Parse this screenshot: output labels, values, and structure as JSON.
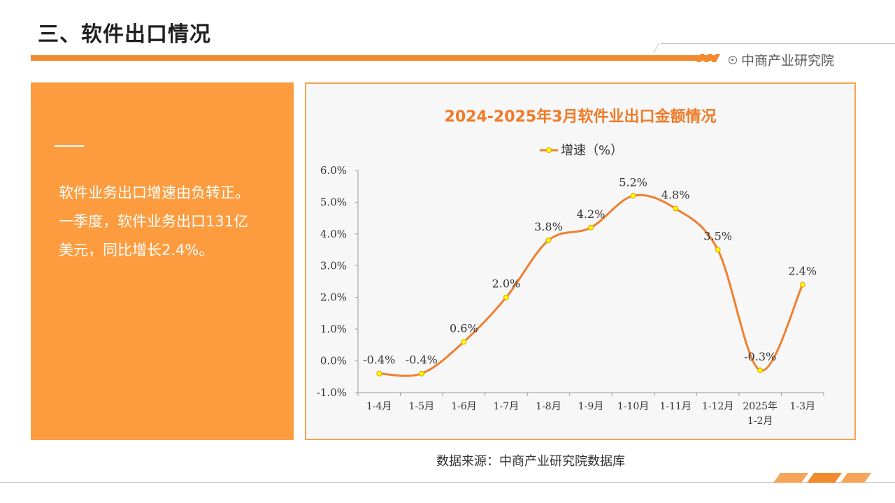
{
  "page": {
    "title": "三、软件出口情况",
    "brand": "中商产业研究院",
    "source": "数据来源：中商产业研究院数据库"
  },
  "summary": {
    "lines": [
      "软件业务出口增速由负转正。",
      "一季度，软件业务出口131亿",
      "美元，同比增长2.4%。"
    ]
  },
  "colors": {
    "accent": "#f28b30",
    "panel": "#fd9c3f",
    "line": "#f07f2f",
    "marker_fill": "#ffff00",
    "marker_stroke": "#e0a000",
    "chart_title": "#f07a28"
  },
  "chart_data": {
    "type": "line",
    "title": "2024-2025年3月软件业出口金额情况",
    "categories": [
      "1-4月",
      "1-5月",
      "1-6月",
      "1-7月",
      "1-8月",
      "1-9月",
      "1-10月",
      "1-11月",
      "1-12月",
      "2025年\n1-2月",
      "1-3月"
    ],
    "series": [
      {
        "name": "增速（%）",
        "values": [
          -0.4,
          -0.4,
          0.6,
          2.0,
          3.8,
          4.2,
          5.2,
          4.8,
          3.5,
          -0.3,
          2.4
        ],
        "labels": [
          "-0.4%",
          "-0.4%",
          "0.6%",
          "2.0%",
          "3.8%",
          "4.2%",
          "5.2%",
          "4.8%",
          "3.5%",
          "-0.3%",
          "2.4%"
        ]
      }
    ],
    "y_ticks": [
      "-1.0%",
      "0.0%",
      "1.0%",
      "2.0%",
      "3.0%",
      "4.0%",
      "5.0%",
      "6.0%"
    ],
    "ylim": [
      -1.0,
      6.0
    ],
    "legend_position": "top-center",
    "grid": false,
    "smooth": true
  }
}
